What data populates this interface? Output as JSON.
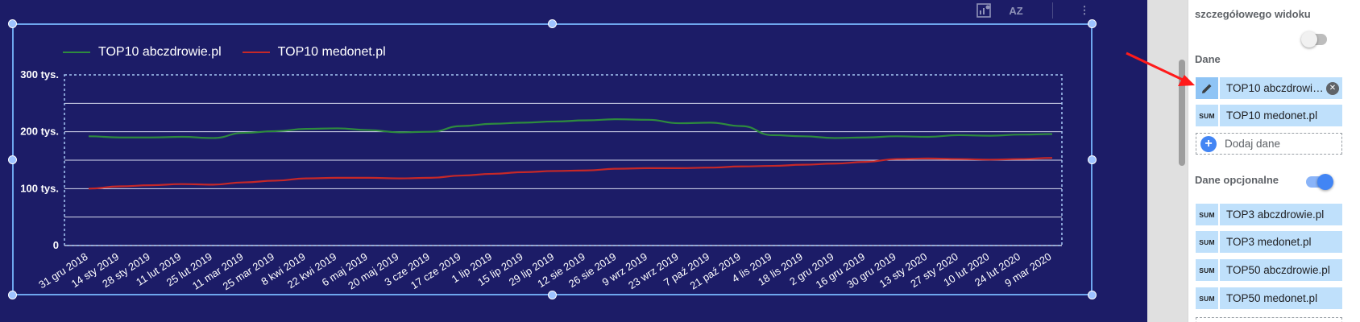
{
  "toolbar": {
    "icons": [
      "chart-settings-icon",
      "sort-az-icon",
      "more-vert-icon"
    ],
    "sort_label": "AZ",
    "more_label": "⋮"
  },
  "legend": [
    {
      "name": "TOP10 abczdrowie.pl",
      "color": "#2e8b3e"
    },
    {
      "name": "TOP10 medonet.pl",
      "color": "#c62828"
    }
  ],
  "chart_data": {
    "type": "line",
    "x": [
      "31 gru 2018",
      "14 sty 2019",
      "28 sty 2019",
      "11 lut 2019",
      "25 lut 2019",
      "11 mar 2019",
      "25 mar 2019",
      "8 kwi 2019",
      "22 kwi 2019",
      "6 maj 2019",
      "20 maj 2019",
      "3 cze 2019",
      "17 cze 2019",
      "1 lip 2019",
      "15 lip 2019",
      "29 lip 2019",
      "12 sie 2019",
      "26 sie 2019",
      "9 wrz 2019",
      "23 wrz 2019",
      "7 paź 2019",
      "21 paź 2019",
      "4 lis 2019",
      "18 lis 2019",
      "2 gru 2019",
      "16 gru 2019",
      "30 gru 2019",
      "13 sty 2020",
      "27 sty 2020",
      "10 lut 2020",
      "24 lut 2020",
      "9 mar 2020"
    ],
    "series": [
      {
        "name": "TOP10 abczdrowie.pl",
        "values": [
          192,
          190,
          190,
          191,
          189,
          198,
          201,
          205,
          206,
          203,
          199,
          200,
          210,
          214,
          216,
          218,
          220,
          222,
          221,
          215,
          216,
          210,
          194,
          192,
          189,
          190,
          192,
          191,
          194,
          193,
          195,
          196
        ]
      },
      {
        "name": "TOP10 medonet.pl",
        "values": [
          100,
          104,
          106,
          108,
          107,
          111,
          114,
          118,
          119,
          119,
          118,
          119,
          123,
          126,
          129,
          131,
          132,
          135,
          136,
          136,
          137,
          139,
          140,
          142,
          144,
          147,
          152,
          153,
          152,
          151,
          152,
          154
        ]
      }
    ],
    "y_ticks": [
      {
        "value": 300,
        "label": "300 tys."
      },
      {
        "value": 200,
        "label": "200 tys."
      },
      {
        "value": 100,
        "label": "100 tys."
      },
      {
        "value": 0,
        "label": "0"
      }
    ],
    "ylim": [
      0,
      300
    ],
    "grid": true,
    "legend_position": "top-left"
  },
  "panel": {
    "detail_view_label": "szczegółowego widoku",
    "detail_view_enabled": false,
    "data_section_label": "Dane",
    "metrics": [
      {
        "tag": "✎",
        "label": "TOP10 abczdrowie.pl",
        "removable": true
      },
      {
        "tag": "SUM",
        "label": "TOP10 medonet.pl",
        "removable": false
      }
    ],
    "add_data_label": "Dodaj dane",
    "optional_label": "Dane opcjonalne",
    "optional_enabled": true,
    "optional_metrics": [
      {
        "tag": "SUM",
        "label": "TOP3 abczdrowie.pl"
      },
      {
        "tag": "SUM",
        "label": "TOP3 medonet.pl"
      },
      {
        "tag": "SUM",
        "label": "TOP50 abczdrowie.pl"
      },
      {
        "tag": "SUM",
        "label": "TOP50 medonet.pl"
      }
    ],
    "colors": {
      "toggle_on": "#4285f4",
      "toggle_off": "#bdbdbd",
      "chip": "#bfe0fb"
    }
  },
  "annotation_color": "#ff1a1a"
}
